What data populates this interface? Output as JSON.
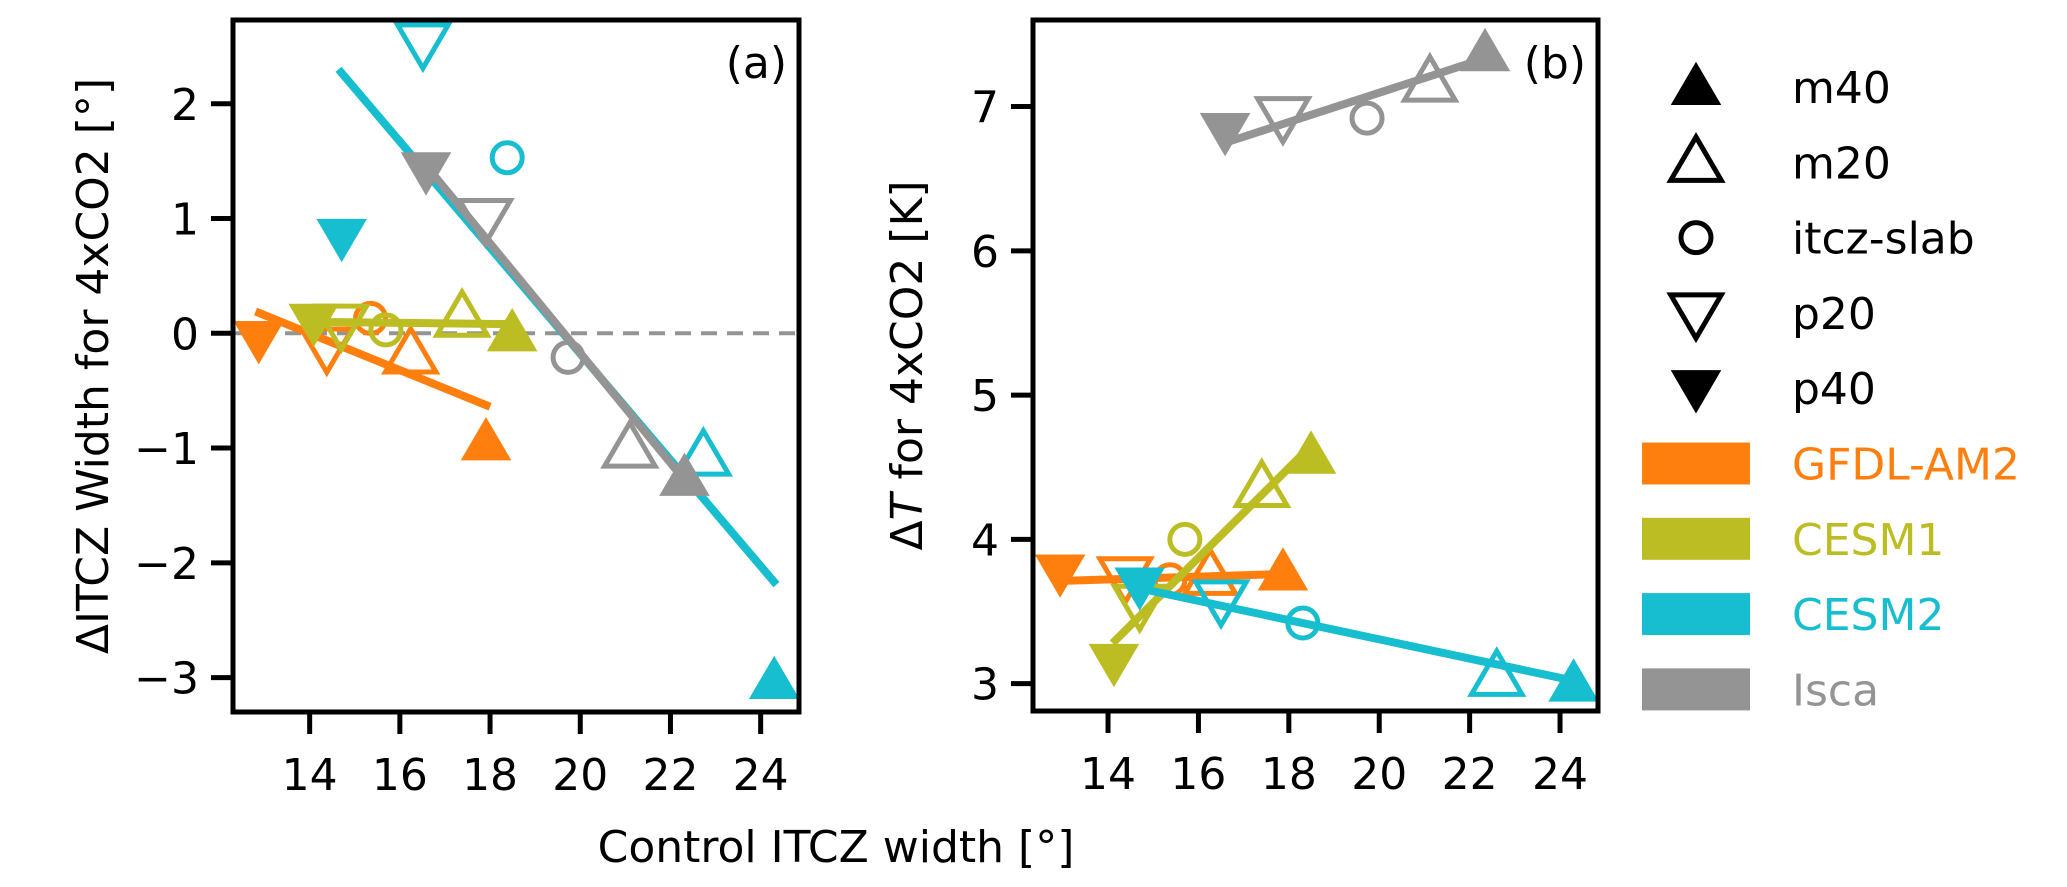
{
  "chart_data": {
    "type": "scatter",
    "shared_xlabel": "Control ITCZ width [°]",
    "legend": {
      "placement": "right",
      "markers": [
        {
          "key": "m40",
          "label": "m40",
          "symbol": "triangle-up-filled"
        },
        {
          "key": "m20",
          "label": "m20",
          "symbol": "triangle-up-open"
        },
        {
          "key": "itcz-slab",
          "label": "itcz-slab",
          "symbol": "circle-open"
        },
        {
          "key": "p20",
          "label": "p20",
          "symbol": "triangle-down-open"
        },
        {
          "key": "p40",
          "label": "p40",
          "symbol": "triangle-down-filled"
        }
      ],
      "models": [
        {
          "key": "GFDL-AM2",
          "label": "GFDL-AM2",
          "color": "#ff7f0e"
        },
        {
          "key": "CESM1",
          "label": "CESM1",
          "color": "#bcbd22"
        },
        {
          "key": "CESM2",
          "label": "CESM2",
          "color": "#17becf"
        },
        {
          "key": "Isca",
          "label": "Isca",
          "color": "#949494"
        }
      ]
    },
    "panels": [
      {
        "id": "a",
        "panel_label": "(a)",
        "ylabel": "ΔITCZ Width for 4xCO2 [°]",
        "xlim": [
          12.3,
          24.85
        ],
        "ylim": [
          -3.3,
          2.73
        ],
        "xticks": [
          14,
          16,
          18,
          20,
          22,
          24
        ],
        "yticks": [
          2,
          1,
          0,
          -1,
          -2,
          -3
        ],
        "ytick_labels": [
          "2",
          "1",
          "0",
          "−1",
          "−2",
          "−3"
        ],
        "reference_line": {
          "y": 0,
          "style": "dashed",
          "color": "#949494"
        },
        "series": [
          {
            "model": "GFDL-AM2",
            "points": {
              "p40": [
                12.87,
                -0.05
              ],
              "p20": [
                14.38,
                -0.12
              ],
              "itcz-slab": [
                15.35,
                0.13
              ],
              "m20": [
                16.24,
                -0.18
              ],
              "m40": [
                17.91,
                -0.95
              ]
            },
            "fit": [
              [
                12.8,
                0.19
              ],
              [
                18.0,
                -0.64
              ]
            ]
          },
          {
            "model": "CESM1",
            "points": {
              "p40": [
                14.09,
                0.1
              ],
              "p20": [
                14.7,
                0.08
              ],
              "itcz-slab": [
                15.69,
                0.03
              ],
              "m20": [
                17.38,
                0.14
              ],
              "m40": [
                18.49,
                0.0
              ]
            },
            "fit": [
              [
                14.0,
                0.1
              ],
              [
                18.5,
                0.08
              ]
            ]
          },
          {
            "model": "CESM2",
            "points": {
              "p40": [
                14.71,
                0.84
              ],
              "p20": [
                16.51,
                2.53
              ],
              "itcz-slab": [
                18.38,
                1.53
              ],
              "m20": [
                22.73,
                -1.07
              ],
              "m40": [
                24.3,
                -3.03
              ]
            },
            "fit": [
              [
                14.64,
                2.3
              ],
              [
                24.35,
                -2.19
              ]
            ]
          },
          {
            "model": "Isca",
            "points": {
              "p40": [
                16.58,
                1.42
              ],
              "p20": [
                17.89,
                1.0
              ],
              "itcz-slab": [
                19.73,
                -0.21
              ],
              "m20": [
                21.1,
                -1.0
              ],
              "m40": [
                22.31,
                -1.26
              ]
            },
            "fit": [
              [
                16.69,
                1.41
              ],
              [
                22.4,
                -1.32
              ]
            ]
          }
        ]
      },
      {
        "id": "b",
        "panel_label": "(b)",
        "ylabel_prefix": "Δ",
        "ylabel_italic": "T",
        "ylabel_suffix": " for 4xCO2 [K]",
        "xlim": [
          12.34,
          24.84
        ],
        "ylim": [
          2.81,
          7.6
        ],
        "xticks": [
          14,
          16,
          18,
          20,
          22,
          24
        ],
        "yticks": [
          7,
          6,
          5,
          4,
          3
        ],
        "ytick_labels": [
          "7",
          "6",
          "5",
          "4",
          "3"
        ],
        "series": [
          {
            "model": "GFDL-AM2",
            "points": {
              "p40": [
                12.94,
                3.77
              ],
              "p20": [
                14.38,
                3.74
              ],
              "itcz-slab": [
                15.37,
                3.72
              ],
              "m20": [
                16.26,
                3.75
              ],
              "m40": [
                17.87,
                3.77
              ]
            },
            "fit": [
              [
                12.8,
                3.71
              ],
              [
                17.9,
                3.76
              ]
            ]
          },
          {
            "model": "CESM1",
            "points": {
              "p40": [
                14.13,
                3.15
              ],
              "p20": [
                14.7,
                3.55
              ],
              "itcz-slab": [
                15.7,
                4.0
              ],
              "m20": [
                17.4,
                4.36
              ],
              "m40": [
                18.49,
                4.58
              ]
            },
            "fit": [
              [
                14.1,
                3.28
              ],
              [
                18.4,
                4.62
              ]
            ]
          },
          {
            "model": "CESM2",
            "points": {
              "p40": [
                14.7,
                3.68
              ],
              "p20": [
                16.5,
                3.58
              ],
              "itcz-slab": [
                18.31,
                3.42
              ],
              "m20": [
                22.6,
                3.05
              ],
              "m40": [
                24.3,
                3.0
              ]
            },
            "fit": [
              [
                14.7,
                3.66
              ],
              [
                24.3,
                3.02
              ]
            ]
          },
          {
            "model": "Isca",
            "points": {
              "p40": [
                16.59,
                6.83
              ],
              "p20": [
                17.87,
                6.93
              ],
              "itcz-slab": [
                19.73,
                6.92
              ],
              "m20": [
                21.12,
                7.17
              ],
              "m40": [
                22.34,
                7.37
              ]
            },
            "fit": [
              [
                16.6,
                6.75
              ],
              [
                22.3,
                7.33
              ]
            ]
          }
        ]
      }
    ]
  }
}
